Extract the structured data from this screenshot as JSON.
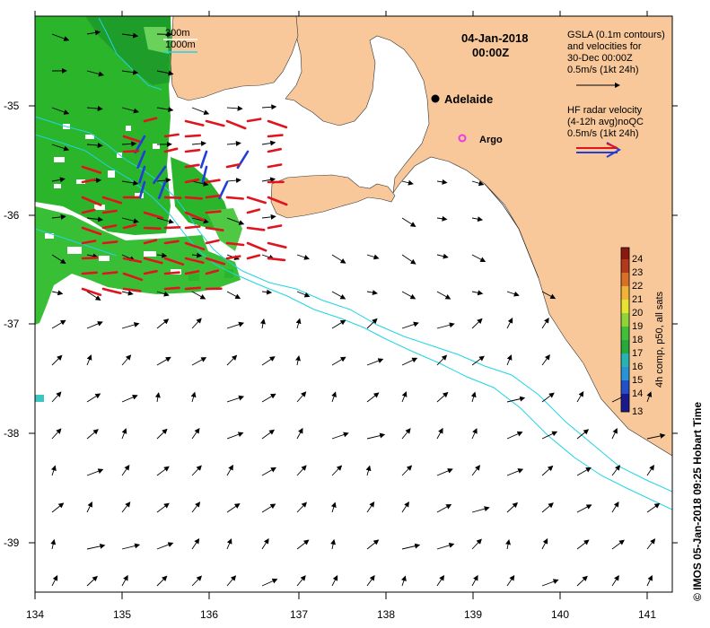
{
  "map": {
    "date_label": "04-Jan-2018",
    "time_label": "00:00Z",
    "isobath_labels": [
      "200m",
      "1000m"
    ],
    "place_city": "Adelaide",
    "place_argo": "Argo",
    "gsla_legend": [
      "GSLA (0.1m contours)",
      "and velocities for",
      "30-Dec 00:00Z",
      "0.5m/s (1kt 24h)"
    ],
    "hf_legend": [
      "HF radar velocity",
      "(4-12h avg)noQC",
      "0.5m/s (1kt 24h)"
    ],
    "credit": "© IMOS 05-Jan-2018 09:25 Hobart Time",
    "colorbar_label": "4h comp, p50, all sats",
    "colorbar_ticks": [
      "13",
      "14",
      "15",
      "16",
      "17",
      "18",
      "19",
      "20",
      "21",
      "22",
      "23",
      "24"
    ],
    "x_ticks": [
      "134",
      "135",
      "136",
      "137",
      "138",
      "139",
      "140",
      "141"
    ],
    "y_ticks": [
      "-35",
      "-36",
      "-37",
      "-38",
      "-39"
    ],
    "colors": {
      "land": "#f8c89a",
      "sst_green": "#2bb52b",
      "sst_light": "#6ad15a",
      "isobath": "#22d3e6",
      "radar_red": "#e0141e",
      "radar_blue": "#1f3fd8",
      "argo": "#e83ce8"
    },
    "units": {
      "x": "degrees longitude",
      "y": "degrees latitude"
    },
    "x_range": [
      134,
      141.3
    ],
    "y_range": [
      -39.45,
      -34.2
    ],
    "cities": [
      {
        "name": "Adelaide",
        "lon": 138.6,
        "lat": -34.93
      }
    ],
    "argo_floats": [
      {
        "name": "Argo",
        "lon": 138.88,
        "lat": -35.3
      }
    ]
  }
}
